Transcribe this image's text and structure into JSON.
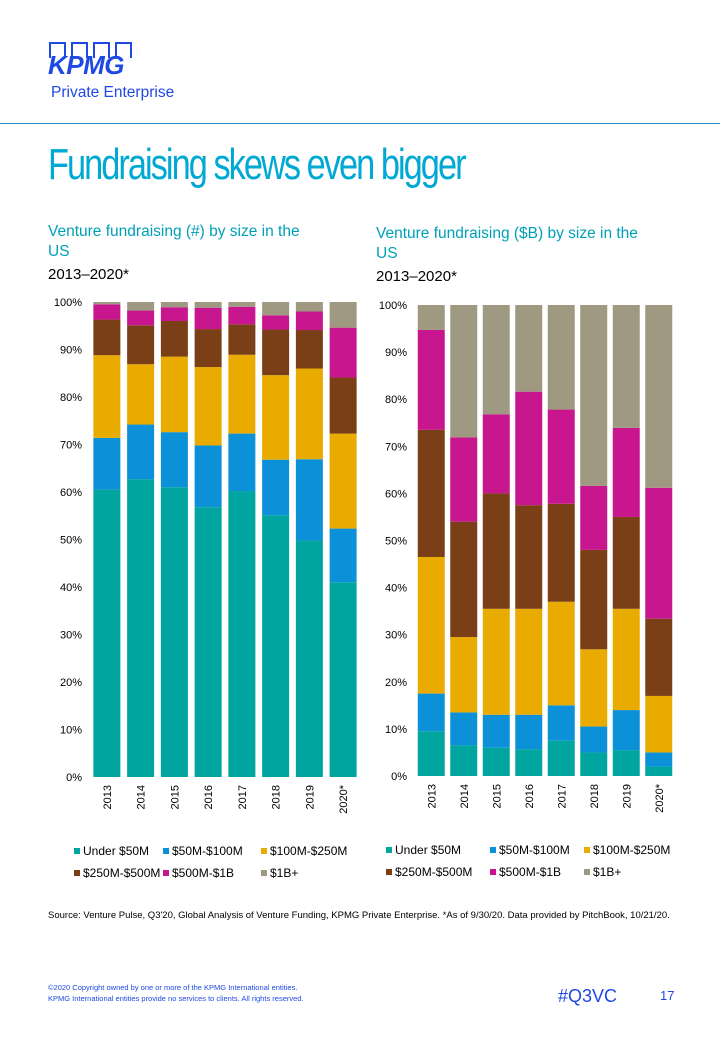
{
  "logo": {
    "brand": "KPMG",
    "sub": "Private Enterprise"
  },
  "page": {
    "title": "Fundraising skews even bigger",
    "source": "Source: Venture Pulse, Q3'20, Global Analysis of Venture Funding, KPMG Private Enterprise. *As of 9/30/20. Data provided by PitchBook, 10/21/20.",
    "copyright_line1": "©2020 Copyright owned by one or more of the KPMG International entities.",
    "copyright_line2": "KPMG International entities provide no services to clients. All rights reserved.",
    "hashtag": "#Q3VC",
    "page_number": "17"
  },
  "colors": {
    "Under $50M": "#00a59f",
    "$50M-$100M": "#0c91d8",
    "$100M-$250M": "#eaab00",
    "$250M-$500M": "#7a3f16",
    "$500M-$1B": "#c8168e",
    "$1B+": "#9e9980"
  },
  "chart_data": [
    {
      "type": "bar",
      "stacked": true,
      "title": "Venture fundraising (#) by size in the US",
      "subtitle": "2013–2020*",
      "categories": [
        "2013",
        "2014",
        "2015",
        "2016",
        "2017",
        "2018",
        "2019",
        "2020*"
      ],
      "ylim": [
        0,
        100
      ],
      "yticks": [
        "0%",
        "10%",
        "20%",
        "30%",
        "40%",
        "50%",
        "60%",
        "70%",
        "80%",
        "90%",
        "100%"
      ],
      "series": [
        {
          "name": "Under $50M",
          "values": [
            60.5,
            62.7,
            61.0,
            56.8,
            60.2,
            55.1,
            49.8,
            41.0
          ]
        },
        {
          "name": "$50M-$100M",
          "values": [
            10.9,
            11.5,
            11.6,
            13.0,
            12.1,
            11.7,
            17.1,
            11.3
          ]
        },
        {
          "name": "$100M-$250M",
          "values": [
            17.4,
            12.7,
            15.9,
            16.5,
            16.6,
            17.8,
            19.1,
            20.0
          ]
        },
        {
          "name": "$250M-$500M",
          "values": [
            7.5,
            8.2,
            7.5,
            8.0,
            6.4,
            9.6,
            8.1,
            11.8
          ]
        },
        {
          "name": "$500M-$1B",
          "values": [
            3.2,
            3.1,
            2.9,
            4.5,
            3.7,
            3.0,
            3.9,
            10.5
          ]
        },
        {
          "name": "$1B+",
          "values": [
            0.5,
            1.8,
            1.1,
            1.2,
            1.0,
            2.8,
            2.0,
            5.4
          ]
        }
      ]
    },
    {
      "type": "bar",
      "stacked": true,
      "title": "Venture fundraising ($B) by size in the US",
      "subtitle": "2013–2020*",
      "categories": [
        "2013",
        "2014",
        "2015",
        "2016",
        "2017",
        "2018",
        "2019",
        "2020*"
      ],
      "ylim": [
        0,
        100
      ],
      "yticks": [
        "0%",
        "10%",
        "20%",
        "30%",
        "40%",
        "50%",
        "60%",
        "70%",
        "80%",
        "90%",
        "100%"
      ],
      "series": [
        {
          "name": "Under $50M",
          "values": [
            9.5,
            6.5,
            6.0,
            5.7,
            7.5,
            5.0,
            5.5,
            2.0
          ]
        },
        {
          "name": "$50M-$100M",
          "values": [
            8.0,
            7.0,
            7.0,
            7.3,
            7.5,
            5.5,
            8.5,
            3.0
          ]
        },
        {
          "name": "$100M-$250M",
          "values": [
            29.0,
            16.0,
            22.5,
            22.5,
            22.0,
            16.4,
            21.5,
            12.0
          ]
        },
        {
          "name": "$250M-$500M",
          "values": [
            27.0,
            24.5,
            24.5,
            22.0,
            20.8,
            21.1,
            19.5,
            16.4
          ]
        },
        {
          "name": "$500M-$1B",
          "values": [
            21.2,
            17.9,
            16.8,
            24.1,
            20.0,
            13.6,
            18.9,
            27.8
          ]
        },
        {
          "name": "$1B+",
          "values": [
            5.3,
            28.1,
            23.2,
            18.4,
            22.2,
            38.4,
            26.1,
            38.8
          ]
        }
      ]
    }
  ]
}
